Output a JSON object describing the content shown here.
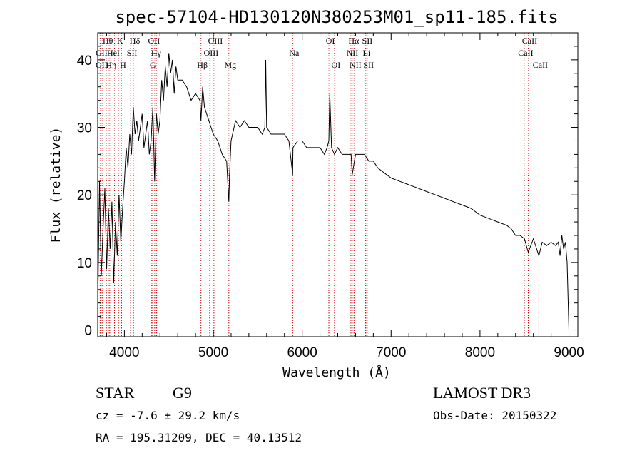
{
  "chart_data": {
    "type": "line",
    "title": "spec-57104-HD130120N380253M01_sp11-185.fits",
    "xlabel": "Wavelength (Å)",
    "ylabel": "Flux (relative)",
    "xlim": [
      3700,
      9100
    ],
    "ylim": [
      -1,
      44
    ],
    "xticks": [
      4000,
      5000,
      6000,
      7000,
      8000,
      9000
    ],
    "yticks": [
      0,
      10,
      20,
      30,
      40
    ],
    "series": [
      {
        "name": "spectrum",
        "x": [
          3700,
          3720,
          3740,
          3760,
          3780,
          3800,
          3820,
          3840,
          3860,
          3880,
          3900,
          3920,
          3940,
          3960,
          3980,
          4000,
          4020,
          4040,
          4060,
          4080,
          4100,
          4120,
          4140,
          4160,
          4180,
          4200,
          4220,
          4240,
          4260,
          4280,
          4300,
          4320,
          4340,
          4360,
          4380,
          4400,
          4420,
          4440,
          4460,
          4480,
          4500,
          4520,
          4540,
          4560,
          4580,
          4600,
          4650,
          4700,
          4750,
          4800,
          4850,
          4861,
          4880,
          4900,
          4950,
          5000,
          5050,
          5100,
          5150,
          5175,
          5183,
          5200,
          5250,
          5300,
          5350,
          5400,
          5450,
          5500,
          5550,
          5580,
          5590,
          5600,
          5650,
          5700,
          5750,
          5800,
          5850,
          5893,
          5896,
          5950,
          6000,
          6050,
          6100,
          6150,
          6200,
          6250,
          6280,
          6300,
          6310,
          6330,
          6363,
          6400,
          6450,
          6500,
          6550,
          6563,
          6600,
          6650,
          6700,
          6750,
          6800,
          6850,
          6900,
          6950,
          7000,
          7100,
          7200,
          7300,
          7400,
          7500,
          7600,
          7700,
          7800,
          7900,
          8000,
          8100,
          8200,
          8300,
          8350,
          8400,
          8450,
          8500,
          8542,
          8600,
          8662,
          8700,
          8750,
          8800,
          8850,
          8880,
          8900,
          8920,
          8940,
          8960,
          8980,
          9000
        ],
        "values": [
          3,
          22,
          8,
          15,
          21,
          9,
          18,
          12,
          19,
          7,
          16,
          11,
          20,
          13,
          18,
          22,
          27,
          24,
          29,
          26,
          33,
          29,
          31,
          28,
          30,
          32,
          27,
          29,
          31,
          26,
          28,
          33,
          22,
          32,
          29,
          31,
          37,
          34,
          39,
          36,
          41,
          38,
          40,
          35,
          39,
          37,
          37,
          36,
          34,
          35,
          34,
          31,
          36,
          33,
          31,
          29,
          28,
          26,
          25,
          19,
          23,
          28,
          31,
          30,
          31,
          30,
          30,
          30,
          29,
          30,
          40,
          30,
          29,
          29,
          29,
          29,
          28,
          23,
          27,
          28,
          28,
          27,
          27,
          27,
          27,
          26,
          27,
          28,
          35,
          27,
          26,
          27,
          26,
          26,
          26,
          23,
          26,
          26,
          26,
          25,
          25,
          24,
          23.5,
          23,
          22.5,
          22,
          21.5,
          21,
          20.5,
          20,
          19.5,
          19,
          18.5,
          18,
          17,
          16.5,
          16,
          15.5,
          15,
          14,
          14,
          13.5,
          11.5,
          13.5,
          11,
          13,
          12.5,
          13,
          12.5,
          13,
          11,
          14,
          12,
          13,
          10,
          0
        ]
      }
    ],
    "line_markers": [
      {
        "x": 3727,
        "label": "OII"
      },
      {
        "x": 3750,
        "label": "OII"
      },
      {
        "x": 3798,
        "label": "Hθ"
      },
      {
        "x": 3820,
        "label": "HeI"
      },
      {
        "x": 3835,
        "label": "Hη"
      },
      {
        "x": 3889,
        "label": "HeI"
      },
      {
        "x": 3934,
        "label": "K"
      },
      {
        "x": 3968,
        "label": "H"
      },
      {
        "x": 4070,
        "label": "SII"
      },
      {
        "x": 4102,
        "label": "Hδ"
      },
      {
        "x": 4304,
        "label": "G"
      },
      {
        "x": 4317,
        "label": "OII"
      },
      {
        "x": 4341,
        "label": "Hγ"
      },
      {
        "x": 4363,
        "label": "OIII"
      },
      {
        "x": 4861,
        "label": "Hβ"
      },
      {
        "x": 4959,
        "label": "OIII"
      },
      {
        "x": 5007,
        "label": "OIII"
      },
      {
        "x": 5175,
        "label": "Mg"
      },
      {
        "x": 5893,
        "label": "Na"
      },
      {
        "x": 6300,
        "label": "OI"
      },
      {
        "x": 6363,
        "label": "OI"
      },
      {
        "x": 6548,
        "label": "NII"
      },
      {
        "x": 6563,
        "label": "Hα"
      },
      {
        "x": 6583,
        "label": "NII"
      },
      {
        "x": 6708,
        "label": "Li"
      },
      {
        "x": 6716,
        "label": "SII"
      },
      {
        "x": 6731,
        "label": "SII"
      },
      {
        "x": 8498,
        "label": "CaII"
      },
      {
        "x": 8542,
        "label": "CaII"
      },
      {
        "x": 8662,
        "label": "CaII"
      }
    ],
    "marker_labels": [
      {
        "text": "Hθ",
        "x": 3798,
        "row": 0
      },
      {
        "text": "K",
        "x": 3934,
        "row": 0
      },
      {
        "text": "Hδ",
        "x": 4102,
        "row": 0
      },
      {
        "text": "OII",
        "x": 4317,
        "row": 0
      },
      {
        "text": "OIII",
        "x": 5007,
        "row": 0
      },
      {
        "text": "OI",
        "x": 6300,
        "row": 0
      },
      {
        "text": "Hα",
        "x": 6563,
        "row": 0
      },
      {
        "text": "SII",
        "x": 6716,
        "row": 0
      },
      {
        "text": "CaII",
        "x": 8542,
        "row": 0
      },
      {
        "text": "OII",
        "x": 3727,
        "row": 1
      },
      {
        "text": "HeI",
        "x": 3860,
        "row": 1
      },
      {
        "text": "SII",
        "x": 4070,
        "row": 1
      },
      {
        "text": "Hγ",
        "x": 4341,
        "row": 1
      },
      {
        "text": "OIII",
        "x": 4959,
        "row": 1
      },
      {
        "text": "Na",
        "x": 5893,
        "row": 1
      },
      {
        "text": "NII",
        "x": 6548,
        "row": 1
      },
      {
        "text": "Li",
        "x": 6708,
        "row": 1
      },
      {
        "text": "CaII",
        "x": 8498,
        "row": 1
      },
      {
        "text": "OII",
        "x": 3727,
        "row": 2
      },
      {
        "text": "Hη",
        "x": 3835,
        "row": 2
      },
      {
        "text": "H",
        "x": 3968,
        "row": 2
      },
      {
        "text": "G",
        "x": 4304,
        "row": 2
      },
      {
        "text": "Hβ",
        "x": 4861,
        "row": 2
      },
      {
        "text": "Mg",
        "x": 5175,
        "row": 2
      },
      {
        "text": "OI",
        "x": 6363,
        "row": 2
      },
      {
        "text": "NII",
        "x": 6583,
        "row": 2
      },
      {
        "text": "SII",
        "x": 6731,
        "row": 2
      },
      {
        "text": "CaII",
        "x": 8662,
        "row": 2
      }
    ],
    "colors": {
      "line": "#000000",
      "marker": "#cc0000"
    }
  },
  "info": {
    "object_class": "STAR",
    "subclass": "G9",
    "survey": "LAMOST DR3",
    "cz": "cz = -7.6 ± 29.2 km/s",
    "obs_date": "Obs-Date: 20150322",
    "coords": "RA = 195.31209, DEC =  40.13512"
  }
}
